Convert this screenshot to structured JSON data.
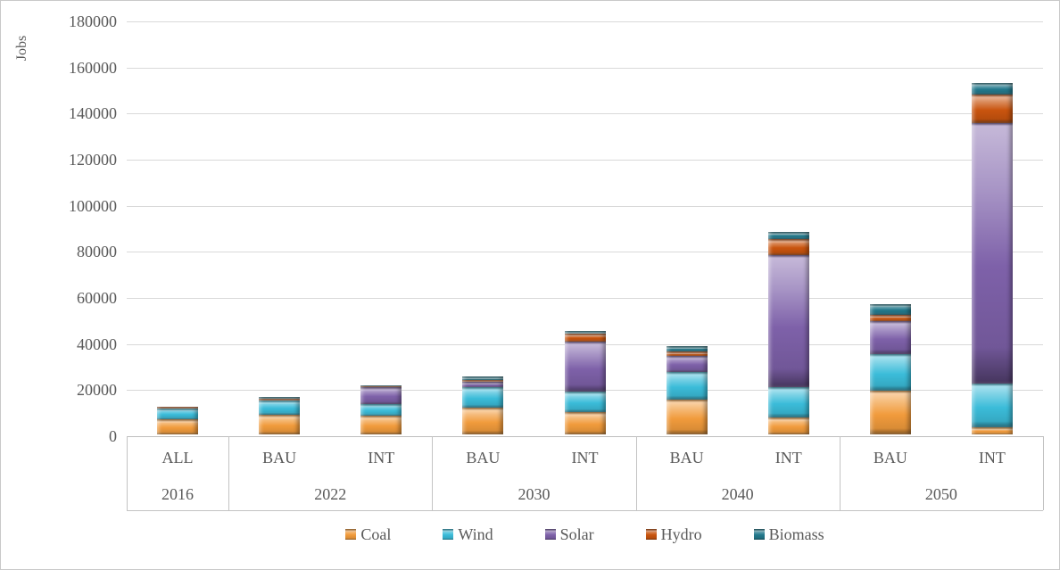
{
  "colors": {
    "background": "#ffffff",
    "gridline": "#d9d9d9",
    "axis_line": "#bfbfbf",
    "category_box_line": "#c3c3c3",
    "text": "#595959",
    "chart_border": "#c9c9c9"
  },
  "chart_data": {
    "type": "bar",
    "stacked": true,
    "title": "",
    "xlabel": "",
    "ylabel": "Jobs",
    "ylim": [
      0,
      180000
    ],
    "yticks": [
      0,
      20000,
      40000,
      60000,
      80000,
      100000,
      120000,
      140000,
      160000,
      180000
    ],
    "grid": true,
    "legend_position": "bottom",
    "bar_labels": [
      "ALL",
      "BAU",
      "INT",
      "BAU",
      "INT",
      "BAU",
      "INT",
      "BAU",
      "INT"
    ],
    "group_labels": [
      {
        "label": "2016",
        "span": 1
      },
      {
        "label": "2022",
        "span": 2
      },
      {
        "label": "2030",
        "span": 2
      },
      {
        "label": "2040",
        "span": 2
      },
      {
        "label": "2050",
        "span": 2
      }
    ],
    "series": [
      {
        "name": "Coal",
        "color": "#F19B3C",
        "values": [
          6500,
          8600,
          8000,
          11500,
          9500,
          15000,
          7500,
          19000,
          3000
        ]
      },
      {
        "name": "Wind",
        "color": "#3BBCD9",
        "values": [
          4800,
          6000,
          5300,
          9000,
          9000,
          12000,
          13000,
          16000,
          19000
        ]
      },
      {
        "name": "Solar",
        "color": "#7E61A9",
        "values": [
          100,
          300,
          7300,
          2200,
          21800,
          7000,
          57500,
          14000,
          113000
        ]
      },
      {
        "name": "Hydro",
        "color": "#C9540E",
        "values": [
          500,
          500,
          500,
          800,
          3300,
          2000,
          6800,
          3000,
          12500
        ]
      },
      {
        "name": "Biomass",
        "color": "#23798C",
        "values": [
          100,
          800,
          300,
          1700,
          1500,
          2200,
          3200,
          4500,
          5000
        ]
      }
    ]
  }
}
